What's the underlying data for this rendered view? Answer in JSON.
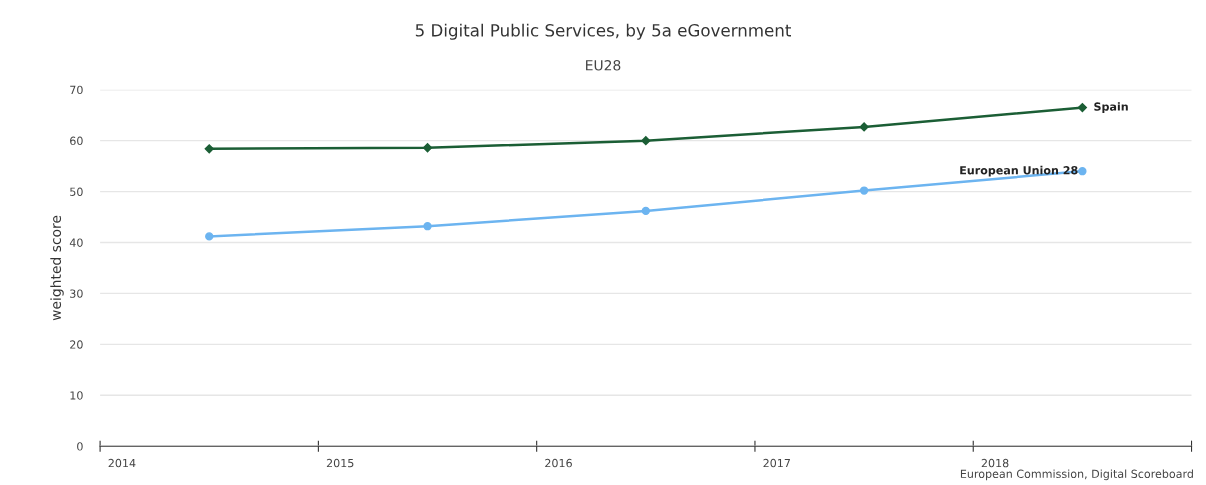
{
  "chart_data": {
    "type": "line",
    "title": "5 Digital Public Services, by 5a eGovernment",
    "subtitle": "EU28",
    "ylabel": "weighted score",
    "categories": [
      "2014",
      "2015",
      "2016",
      "2017",
      "2018"
    ],
    "series": [
      {
        "name": "Spain",
        "color": "#1b5e35",
        "marker": "diamond",
        "values": [
          58.4,
          58.6,
          60.0,
          62.7,
          66.5
        ]
      },
      {
        "name": "European Union 28",
        "color": "#6cb4f0",
        "marker": "circle",
        "values": [
          41.2,
          43.2,
          46.2,
          50.2,
          54.0
        ]
      }
    ],
    "ylim": [
      0,
      70
    ],
    "yticks": [
      0,
      10,
      20,
      30,
      40,
      50,
      60,
      70
    ],
    "grid": "y",
    "legend": false,
    "annotations": [
      "European Commission, Digital Scoreboard"
    ]
  }
}
